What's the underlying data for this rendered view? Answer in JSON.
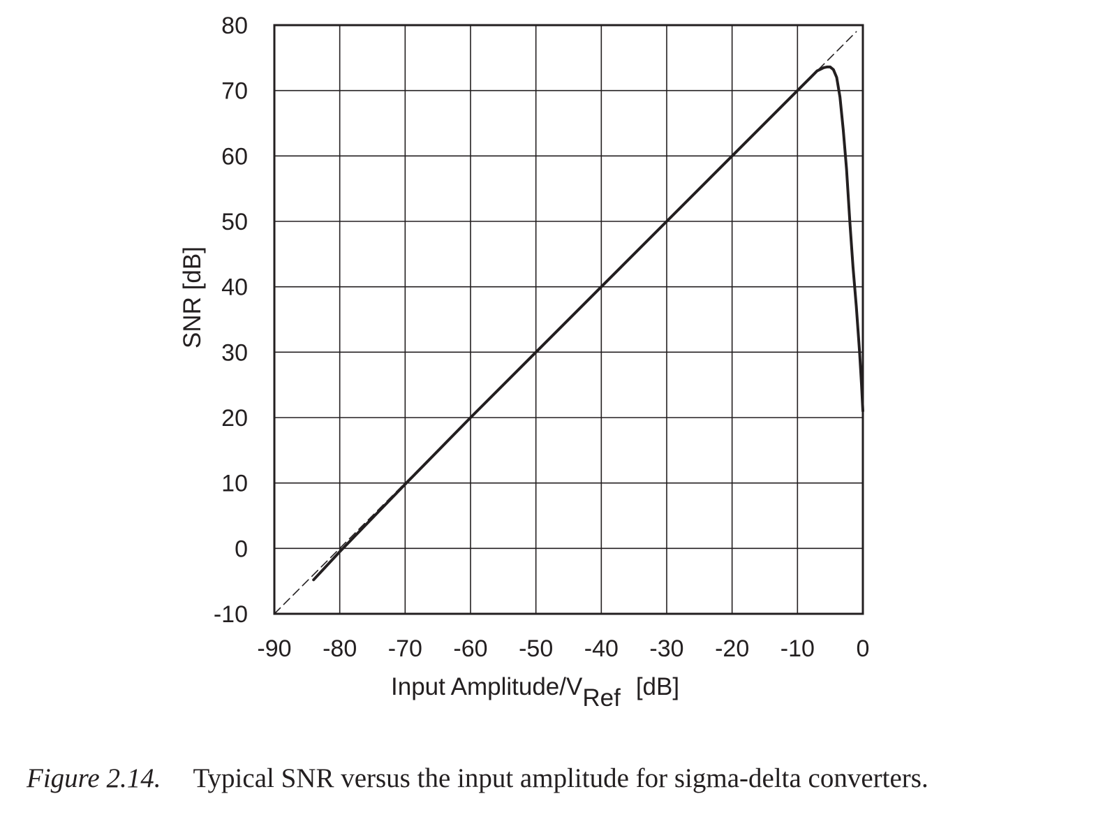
{
  "chart_data": {
    "type": "line",
    "xlabel": {
      "main": "Input Amplitude/V",
      "subscript": "Ref",
      "unit": "[dB]"
    },
    "ylabel": "SNR [dB]",
    "xlim": [
      -90,
      0
    ],
    "ylim": [
      -10,
      80
    ],
    "x_ticks": [
      -90,
      -80,
      -70,
      -60,
      -50,
      -40,
      -30,
      -20,
      -10,
      0
    ],
    "y_ticks": [
      -10,
      0,
      10,
      20,
      30,
      40,
      50,
      60,
      70,
      80
    ],
    "grid": true,
    "series": [
      {
        "style": "solid",
        "x": [
          -84,
          -80,
          -70,
          -60,
          -50,
          -40,
          -30,
          -20,
          -10,
          -8,
          -7,
          -6,
          -5.5,
          -5,
          -4.5,
          -4,
          -3.5,
          -3,
          -2.5,
          -2,
          -1.5,
          -1,
          -0.5,
          -0.2,
          0
        ],
        "y": [
          -4.8,
          -0.5,
          9.8,
          20,
          30,
          40,
          50,
          60,
          70,
          72,
          73,
          73.5,
          73.6,
          73.6,
          73.2,
          72,
          69,
          64,
          58,
          50,
          43,
          37,
          30,
          25,
          21
        ]
      },
      {
        "style": "dashed",
        "x": [
          -90,
          -1
        ],
        "y": [
          -10,
          79
        ]
      }
    ]
  },
  "caption": {
    "label": "Figure 2.14.",
    "text": "Typical SNR versus the input amplitude for sigma-delta converters."
  }
}
